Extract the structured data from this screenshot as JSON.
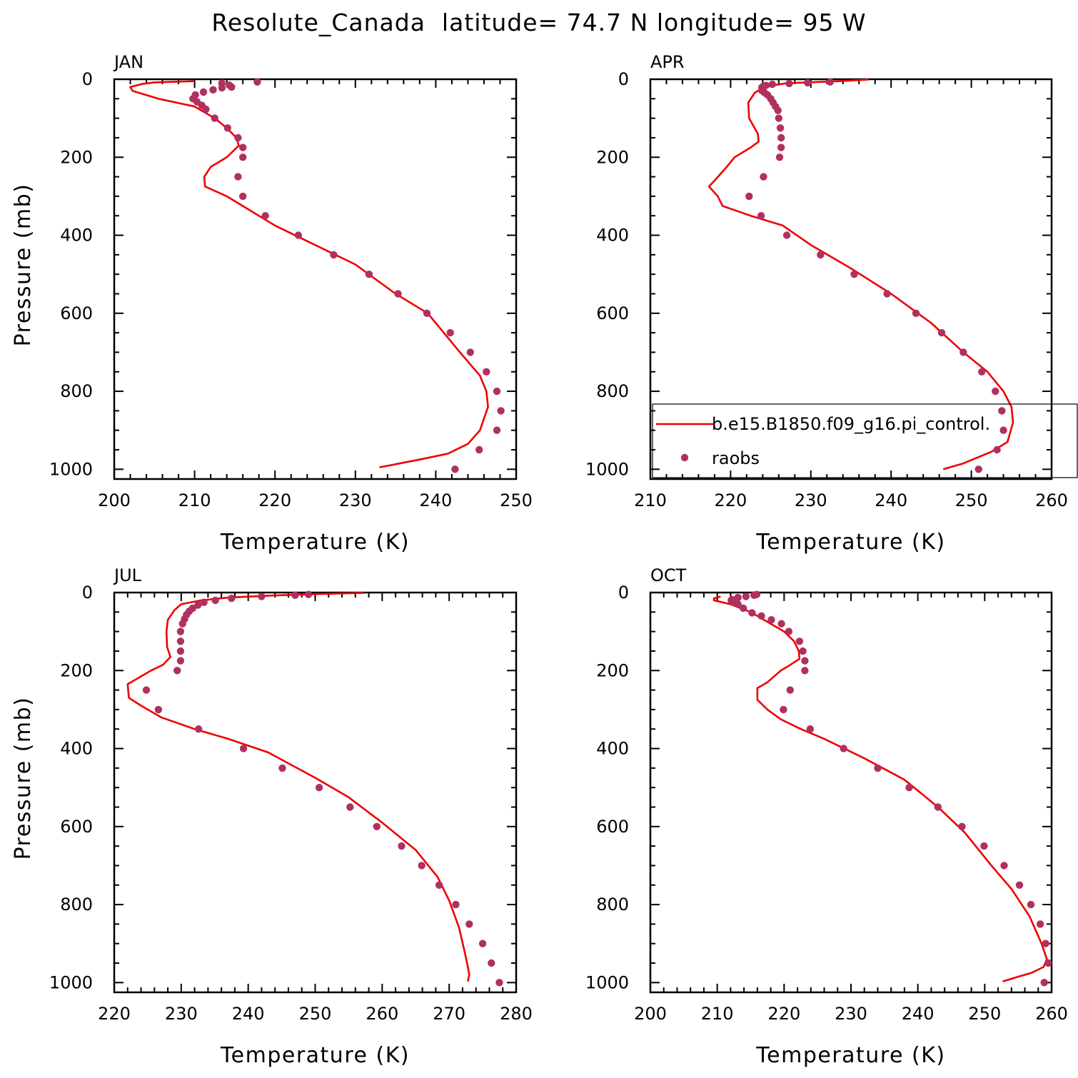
{
  "title": "Resolute_Canada  latitude= 74.7 N longitude= 95 W",
  "colors": {
    "model_line": "#ee0000",
    "obs_marker": "#b03060",
    "axis": "#000000"
  },
  "legend": {
    "model_label": "b.e15.B1850.f09_g16.pi_control.",
    "obs_label": "raobs",
    "placement": "bottom-right of APR panel"
  },
  "chart_data": [
    {
      "type": "line+scatter",
      "panel_label": "JAN",
      "xlabel": "Temperature (K)",
      "ylabel": "Pressure (mb)",
      "xlim": [
        200,
        250
      ],
      "ylim": [
        0,
        1000
      ],
      "y_inverted": true,
      "xticks": [
        200,
        210,
        220,
        230,
        240,
        250
      ],
      "yticks": [
        0,
        200,
        400,
        600,
        800,
        1000
      ],
      "model": [
        [
          210.0,
          5
        ],
        [
          205.0,
          8
        ],
        [
          203.5,
          12
        ],
        [
          202.0,
          20
        ],
        [
          202.3,
          30
        ],
        [
          205.5,
          50
        ],
        [
          210.0,
          70
        ],
        [
          212.5,
          100
        ],
        [
          214.0,
          125
        ],
        [
          215.2,
          150
        ],
        [
          215.5,
          170
        ],
        [
          214.0,
          200
        ],
        [
          212.0,
          225
        ],
        [
          211.2,
          250
        ],
        [
          211.3,
          275
        ],
        [
          214.0,
          300
        ],
        [
          216.0,
          325
        ],
        [
          220.0,
          375
        ],
        [
          225.0,
          425
        ],
        [
          230.0,
          475
        ],
        [
          235.0,
          550
        ],
        [
          239.0,
          600
        ],
        [
          243.0,
          700
        ],
        [
          245.5,
          760
        ],
        [
          246.3,
          800
        ],
        [
          246.5,
          840
        ],
        [
          245.5,
          900
        ],
        [
          244.0,
          935
        ],
        [
          241.5,
          960
        ],
        [
          238.0,
          975
        ],
        [
          233.0,
          995
        ]
      ],
      "obs": [
        [
          217.8,
          7
        ],
        [
          213.4,
          10
        ],
        [
          214.3,
          15
        ],
        [
          214.6,
          20
        ],
        [
          213.4,
          22
        ],
        [
          212.3,
          27
        ],
        [
          211.1,
          33
        ],
        [
          210.1,
          40
        ],
        [
          209.8,
          50
        ],
        [
          210.3,
          58
        ],
        [
          210.9,
          67
        ],
        [
          211.4,
          77
        ],
        [
          212.5,
          100
        ],
        [
          214.1,
          125
        ],
        [
          215.4,
          150
        ],
        [
          216.0,
          175
        ],
        [
          216.0,
          200
        ],
        [
          215.4,
          250
        ],
        [
          216.0,
          300
        ],
        [
          218.8,
          350
        ],
        [
          222.9,
          400
        ],
        [
          227.3,
          450
        ],
        [
          231.7,
          500
        ],
        [
          235.3,
          550
        ],
        [
          238.9,
          600
        ],
        [
          241.8,
          650
        ],
        [
          244.3,
          700
        ],
        [
          246.3,
          750
        ],
        [
          247.6,
          800
        ],
        [
          248.1,
          850
        ],
        [
          247.6,
          900
        ],
        [
          245.4,
          950
        ],
        [
          242.4,
          1000
        ]
      ]
    },
    {
      "type": "line+scatter",
      "panel_label": "APR",
      "xlabel": "Temperature (K)",
      "ylabel": "",
      "xlim": [
        210,
        260
      ],
      "ylim": [
        0,
        1000
      ],
      "y_inverted": true,
      "xticks": [
        210,
        220,
        230,
        240,
        250,
        260
      ],
      "yticks": [
        0,
        200,
        400,
        600,
        800,
        1000
      ],
      "model": [
        [
          237.2,
          1
        ],
        [
          233.5,
          5
        ],
        [
          227.0,
          10
        ],
        [
          225.5,
          15
        ],
        [
          224.0,
          22
        ],
        [
          223.0,
          35
        ],
        [
          222.2,
          60
        ],
        [
          222.3,
          100
        ],
        [
          223.4,
          140
        ],
        [
          223.5,
          160
        ],
        [
          222.5,
          175
        ],
        [
          220.5,
          200
        ],
        [
          219.5,
          225
        ],
        [
          218.0,
          260
        ],
        [
          217.3,
          275
        ],
        [
          218.4,
          300
        ],
        [
          219.0,
          325
        ],
        [
          222.5,
          350
        ],
        [
          226.5,
          375
        ],
        [
          230.0,
          425
        ],
        [
          235.0,
          485
        ],
        [
          240.0,
          550
        ],
        [
          245.0,
          625
        ],
        [
          249.0,
          700
        ],
        [
          252.0,
          750
        ],
        [
          254.0,
          800
        ],
        [
          255.0,
          840
        ],
        [
          255.2,
          880
        ],
        [
          254.5,
          930
        ],
        [
          252.5,
          955
        ],
        [
          249.0,
          985
        ],
        [
          246.5,
          1000
        ]
      ],
      "obs": [
        [
          232.4,
          7
        ],
        [
          229.6,
          9
        ],
        [
          227.3,
          11
        ],
        [
          225.2,
          13
        ],
        [
          224.4,
          16
        ],
        [
          224.0,
          19
        ],
        [
          223.9,
          21
        ],
        [
          223.9,
          29
        ],
        [
          224.2,
          34
        ],
        [
          224.6,
          40
        ],
        [
          225.0,
          50
        ],
        [
          225.3,
          60
        ],
        [
          225.6,
          70
        ],
        [
          225.9,
          80
        ],
        [
          226.0,
          100
        ],
        [
          226.2,
          125
        ],
        [
          226.3,
          150
        ],
        [
          226.3,
          175
        ],
        [
          226.1,
          200
        ],
        [
          224.1,
          250
        ],
        [
          222.3,
          300
        ],
        [
          223.8,
          350
        ],
        [
          227.0,
          400
        ],
        [
          231.2,
          450
        ],
        [
          235.4,
          500
        ],
        [
          239.5,
          550
        ],
        [
          243.1,
          600
        ],
        [
          246.3,
          650
        ],
        [
          249.0,
          700
        ],
        [
          251.3,
          750
        ],
        [
          253.0,
          800
        ],
        [
          253.8,
          850
        ],
        [
          254.0,
          900
        ],
        [
          253.2,
          950
        ],
        [
          250.9,
          1000
        ]
      ]
    },
    {
      "type": "line+scatter",
      "panel_label": "JUL",
      "xlabel": "Temperature (K)",
      "ylabel": "Pressure (mb)",
      "xlim": [
        220,
        280
      ],
      "ylim": [
        0,
        1000
      ],
      "y_inverted": true,
      "xticks": [
        220,
        230,
        240,
        250,
        260,
        270,
        280
      ],
      "yticks": [
        0,
        200,
        400,
        600,
        800,
        1000
      ],
      "model": [
        [
          257.2,
          1
        ],
        [
          250.0,
          4
        ],
        [
          243.0,
          8
        ],
        [
          237.0,
          13
        ],
        [
          233.0,
          20
        ],
        [
          230.0,
          30
        ],
        [
          229.0,
          45
        ],
        [
          228.0,
          70
        ],
        [
          227.8,
          100
        ],
        [
          227.9,
          140
        ],
        [
          228.4,
          165
        ],
        [
          227.3,
          185
        ],
        [
          225.5,
          200
        ],
        [
          222.0,
          235
        ],
        [
          222.2,
          270
        ],
        [
          224.0,
          290
        ],
        [
          227.0,
          320
        ],
        [
          232.0,
          350
        ],
        [
          237.0,
          375
        ],
        [
          243.0,
          410
        ],
        [
          250.0,
          475
        ],
        [
          255.0,
          525
        ],
        [
          260.0,
          590
        ],
        [
          265.0,
          660
        ],
        [
          268.3,
          730
        ],
        [
          270.0,
          790
        ],
        [
          271.5,
          860
        ],
        [
          272.3,
          920
        ],
        [
          272.8,
          960
        ],
        [
          273.0,
          980
        ],
        [
          272.8,
          997
        ]
      ],
      "obs": [
        [
          249.0,
          5
        ],
        [
          247.0,
          7
        ],
        [
          242.0,
          10
        ],
        [
          237.5,
          15
        ],
        [
          235.1,
          20
        ],
        [
          233.4,
          25
        ],
        [
          232.5,
          32
        ],
        [
          231.7,
          40
        ],
        [
          231.2,
          48
        ],
        [
          230.8,
          57
        ],
        [
          230.5,
          68
        ],
        [
          230.2,
          80
        ],
        [
          229.9,
          100
        ],
        [
          229.9,
          125
        ],
        [
          229.9,
          150
        ],
        [
          229.9,
          175
        ],
        [
          229.4,
          200
        ],
        [
          224.8,
          250
        ],
        [
          226.6,
          300
        ],
        [
          232.6,
          350
        ],
        [
          239.3,
          400
        ],
        [
          245.1,
          450
        ],
        [
          250.6,
          500
        ],
        [
          255.2,
          550
        ],
        [
          259.2,
          600
        ],
        [
          262.9,
          650
        ],
        [
          265.9,
          700
        ],
        [
          268.5,
          750
        ],
        [
          271.0,
          800
        ],
        [
          273.0,
          850
        ],
        [
          275.0,
          900
        ],
        [
          276.3,
          950
        ],
        [
          277.5,
          1000
        ]
      ]
    },
    {
      "type": "line+scatter",
      "panel_label": "OCT",
      "xlabel": "Temperature (K)",
      "ylabel": "",
      "xlim": [
        200,
        260
      ],
      "ylim": [
        0,
        1000
      ],
      "y_inverted": true,
      "xticks": [
        200,
        210,
        220,
        230,
        240,
        250,
        260
      ],
      "yticks": [
        0,
        200,
        400,
        600,
        800,
        1000
      ],
      "model": [
        [
          210.5,
          10
        ],
        [
          209.5,
          15
        ],
        [
          209.5,
          20
        ],
        [
          212.0,
          30
        ],
        [
          215.0,
          50
        ],
        [
          217.5,
          75
        ],
        [
          220.0,
          100
        ],
        [
          221.5,
          125
        ],
        [
          222.2,
          150
        ],
        [
          222.3,
          170
        ],
        [
          220.5,
          190
        ],
        [
          219.5,
          200
        ],
        [
          217.5,
          230
        ],
        [
          216.0,
          245
        ],
        [
          216.0,
          275
        ],
        [
          217.5,
          300
        ],
        [
          219.5,
          325
        ],
        [
          222.5,
          350
        ],
        [
          226.0,
          375
        ],
        [
          232.0,
          425
        ],
        [
          238.0,
          480
        ],
        [
          243.0,
          550
        ],
        [
          247.0,
          615
        ],
        [
          251.0,
          700
        ],
        [
          254.0,
          760
        ],
        [
          256.7,
          830
        ],
        [
          258.5,
          900
        ],
        [
          259.3,
          940
        ],
        [
          258.8,
          960
        ],
        [
          257.0,
          975
        ],
        [
          255.0,
          985
        ],
        [
          252.7,
          997
        ]
      ],
      "obs": [
        [
          215.9,
          5
        ],
        [
          215.5,
          7
        ],
        [
          214.3,
          10
        ],
        [
          213.1,
          13
        ],
        [
          212.2,
          18
        ],
        [
          212.1,
          20
        ],
        [
          212.4,
          24
        ],
        [
          213.1,
          30
        ],
        [
          213.9,
          40
        ],
        [
          215.2,
          52
        ],
        [
          216.6,
          60
        ],
        [
          218.1,
          70
        ],
        [
          219.6,
          80
        ],
        [
          220.7,
          100
        ],
        [
          222.3,
          125
        ],
        [
          222.8,
          150
        ],
        [
          223.1,
          175
        ],
        [
          223.1,
          200
        ],
        [
          220.9,
          250
        ],
        [
          219.9,
          300
        ],
        [
          223.9,
          350
        ],
        [
          228.9,
          400
        ],
        [
          234.0,
          450
        ],
        [
          238.7,
          500
        ],
        [
          243.0,
          550
        ],
        [
          246.6,
          600
        ],
        [
          249.9,
          650
        ],
        [
          252.9,
          700
        ],
        [
          255.2,
          750
        ],
        [
          256.9,
          800
        ],
        [
          258.3,
          850
        ],
        [
          259.1,
          900
        ],
        [
          259.5,
          950
        ],
        [
          258.9,
          1000
        ]
      ]
    }
  ]
}
